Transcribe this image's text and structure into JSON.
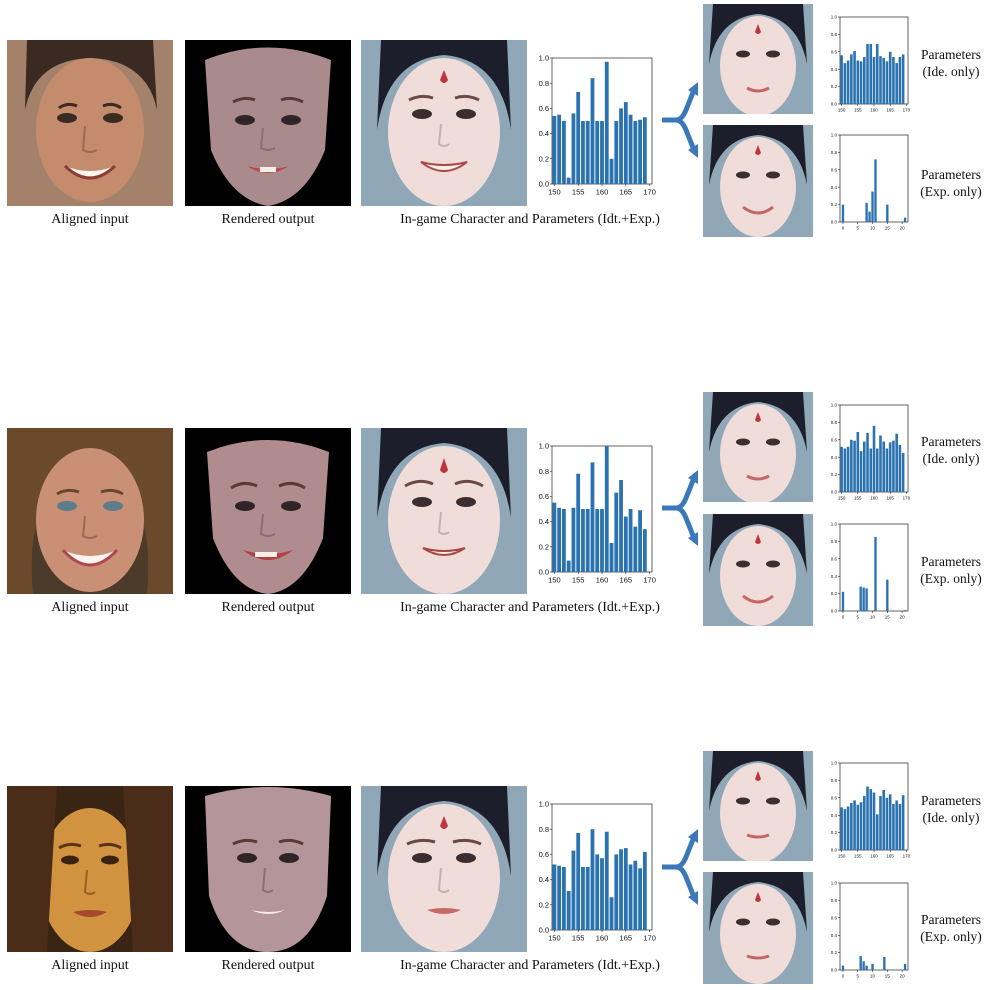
{
  "labels": {
    "aligned_input": "Aligned input",
    "rendered_output": "Rendered output",
    "ingame_caption": "In-game Character and Parameters (Idt.+Exp.)",
    "ide_params_line1": "Parameters",
    "ide_params_line2": "(Ide. only)",
    "exp_params_line1": "Parameters",
    "exp_params_line2": "(Exp. only)"
  },
  "colors": {
    "bar": "#2b72b0",
    "arrow": "#3a78b8",
    "background": "#ffffff"
  },
  "chart_data": [
    {
      "row": 1,
      "panel": "idt-exp",
      "type": "bar",
      "x": [
        150,
        151,
        152,
        153,
        154,
        155,
        156,
        157,
        158,
        159,
        160,
        161,
        162,
        163,
        164,
        165,
        166,
        167,
        168,
        169
      ],
      "values": [
        0.54,
        0.55,
        0.5,
        0.05,
        0.56,
        0.73,
        0.5,
        0.5,
        0.84,
        0.5,
        0.5,
        0.97,
        0.2,
        0.5,
        0.6,
        0.65,
        0.55,
        0.5,
        0.51,
        0.53
      ],
      "xticks": [
        "150",
        "155",
        "160",
        "165",
        "170"
      ],
      "yticks": [
        "0.0",
        "0.2",
        "0.4",
        "0.6",
        "0.8",
        "1.0"
      ],
      "xlim": [
        149.5,
        170.5
      ],
      "ylim": [
        0,
        1
      ]
    },
    {
      "row": 1,
      "panel": "ide-only",
      "type": "bar",
      "x": [
        150,
        151,
        152,
        153,
        154,
        155,
        156,
        157,
        158,
        159,
        160,
        161,
        162,
        163,
        164,
        165,
        166,
        167,
        168,
        169
      ],
      "values": [
        0.56,
        0.47,
        0.5,
        0.57,
        0.61,
        0.5,
        0.49,
        0.54,
        0.69,
        0.69,
        0.54,
        0.69,
        0.55,
        0.53,
        0.49,
        0.6,
        0.54,
        0.47,
        0.54,
        0.57
      ],
      "xticks": [
        "150",
        "155",
        "160",
        "165",
        "170"
      ],
      "yticks": [
        "0.0",
        "0.2",
        "0.4",
        "0.6",
        "0.8",
        "1.0"
      ],
      "xlim": [
        149.5,
        170.5
      ],
      "ylim": [
        0,
        1
      ]
    },
    {
      "row": 1,
      "panel": "exp-only",
      "type": "bar",
      "x": [
        0,
        8,
        9,
        10,
        11,
        15,
        21
      ],
      "values": [
        0.2,
        0.22,
        0.12,
        0.35,
        0.72,
        0.2,
        0.05
      ],
      "xticks": [
        "0",
        "5",
        "10",
        "15",
        "20"
      ],
      "yticks": [
        "0.0",
        "0.2",
        "0.4",
        "0.6",
        "0.8",
        "1.0"
      ],
      "xlim": [
        -1,
        22
      ],
      "ylim": [
        0,
        1
      ]
    },
    {
      "row": 2,
      "panel": "idt-exp",
      "type": "bar",
      "x": [
        150,
        151,
        152,
        153,
        154,
        155,
        156,
        157,
        158,
        159,
        160,
        161,
        162,
        163,
        164,
        165,
        166,
        167,
        168,
        169
      ],
      "values": [
        0.55,
        0.51,
        0.5,
        0.09,
        0.51,
        0.78,
        0.5,
        0.5,
        0.87,
        0.5,
        0.5,
        1.0,
        0.23,
        0.63,
        0.73,
        0.44,
        0.5,
        0.36,
        0.49,
        0.34
      ],
      "xticks": [
        "150",
        "155",
        "160",
        "165",
        "170"
      ],
      "yticks": [
        "0.0",
        "0.2",
        "0.4",
        "0.6",
        "0.8",
        "1.0"
      ],
      "xlim": [
        149.5,
        170.5
      ],
      "ylim": [
        0,
        1
      ]
    },
    {
      "row": 2,
      "panel": "ide-only",
      "type": "bar",
      "x": [
        150,
        151,
        152,
        153,
        154,
        155,
        156,
        157,
        158,
        159,
        160,
        161,
        162,
        163,
        164,
        165,
        166,
        167,
        168,
        169
      ],
      "values": [
        0.52,
        0.5,
        0.52,
        0.6,
        0.59,
        0.69,
        0.47,
        0.58,
        0.68,
        0.5,
        0.76,
        0.5,
        0.65,
        0.58,
        0.5,
        0.57,
        0.59,
        0.67,
        0.54,
        0.45
      ],
      "xticks": [
        "150",
        "155",
        "160",
        "165",
        "170"
      ],
      "yticks": [
        "0.0",
        "0.2",
        "0.4",
        "0.6",
        "0.8",
        "1.0"
      ],
      "xlim": [
        149.5,
        170.5
      ],
      "ylim": [
        0,
        1
      ]
    },
    {
      "row": 2,
      "panel": "exp-only",
      "type": "bar",
      "x": [
        0,
        6,
        7,
        8,
        11,
        15,
        21
      ],
      "values": [
        0.22,
        0.28,
        0.27,
        0.26,
        0.85,
        0.36,
        0.01
      ],
      "xticks": [
        "0",
        "5",
        "10",
        "15",
        "20"
      ],
      "yticks": [
        "0.0",
        "0.2",
        "0.4",
        "0.6",
        "0.8",
        "1.0"
      ],
      "xlim": [
        -1,
        22
      ],
      "ylim": [
        0,
        1
      ]
    },
    {
      "row": 3,
      "panel": "idt-exp",
      "type": "bar",
      "x": [
        150,
        151,
        152,
        153,
        154,
        155,
        156,
        157,
        158,
        159,
        160,
        161,
        162,
        163,
        164,
        165,
        166,
        167,
        168,
        169
      ],
      "values": [
        0.52,
        0.51,
        0.5,
        0.31,
        0.63,
        0.77,
        0.5,
        0.5,
        0.8,
        0.6,
        0.57,
        0.78,
        0.26,
        0.6,
        0.64,
        0.65,
        0.52,
        0.55,
        0.49,
        0.62
      ],
      "xticks": [
        "150",
        "155",
        "160",
        "165",
        "170"
      ],
      "yticks": [
        "0.0",
        "0.2",
        "0.4",
        "0.6",
        "0.8",
        "1.0"
      ],
      "xlim": [
        149.5,
        170.5
      ],
      "ylim": [
        0,
        1
      ]
    },
    {
      "row": 3,
      "panel": "ide-only",
      "type": "bar",
      "x": [
        150,
        151,
        152,
        153,
        154,
        155,
        156,
        157,
        158,
        159,
        160,
        161,
        162,
        163,
        164,
        165,
        166,
        167,
        168,
        169
      ],
      "values": [
        0.49,
        0.47,
        0.5,
        0.54,
        0.57,
        0.52,
        0.55,
        0.62,
        0.73,
        0.7,
        0.66,
        0.41,
        0.62,
        0.69,
        0.6,
        0.64,
        0.53,
        0.57,
        0.53,
        0.63
      ],
      "xticks": [
        "150",
        "155",
        "160",
        "165",
        "170"
      ],
      "yticks": [
        "0.0",
        "0.2",
        "0.4",
        "0.6",
        "0.8",
        "1.0"
      ],
      "xlim": [
        149.5,
        170.5
      ],
      "ylim": [
        0,
        1
      ]
    },
    {
      "row": 3,
      "panel": "exp-only",
      "type": "bar",
      "x": [
        0,
        6,
        7,
        8,
        10,
        14,
        21
      ],
      "values": [
        0.05,
        0.16,
        0.1,
        0.05,
        0.07,
        0.15,
        0.07
      ],
      "xticks": [
        "0",
        "5",
        "10",
        "15",
        "20"
      ],
      "yticks": [
        "0.0",
        "0.2",
        "0.4",
        "0.6",
        "0.8",
        "1.0"
      ],
      "xlim": [
        -1,
        22
      ],
      "ylim": [
        0,
        1
      ]
    }
  ]
}
